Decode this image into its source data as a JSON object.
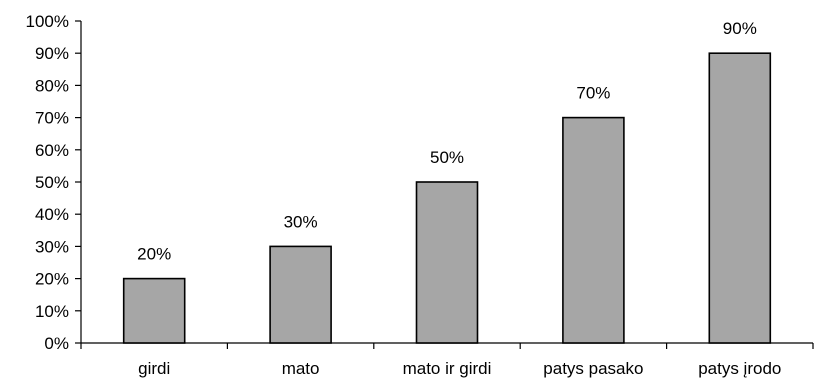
{
  "chart_data": {
    "type": "bar",
    "title": "",
    "xlabel": "",
    "ylabel": "",
    "categories": [
      "girdi",
      "mato",
      "mato ir girdi",
      "patys pasako",
      "patys įrodo"
    ],
    "values": [
      20,
      30,
      50,
      70,
      90
    ],
    "data_labels": [
      "20%",
      "30%",
      "50%",
      "70%",
      "90%"
    ],
    "ylim": [
      0,
      100
    ],
    "yticks": [
      0,
      10,
      20,
      30,
      40,
      50,
      60,
      70,
      80,
      90,
      100
    ],
    "ytick_labels": [
      "0%",
      "10%",
      "20%",
      "30%",
      "40%",
      "50%",
      "60%",
      "70%",
      "80%",
      "90%",
      "100%"
    ],
    "grid": false,
    "legend": "none",
    "colors": {
      "bar_fill": "#a6a6a6",
      "bar_stroke": "#000000",
      "axis": "#000000"
    }
  }
}
